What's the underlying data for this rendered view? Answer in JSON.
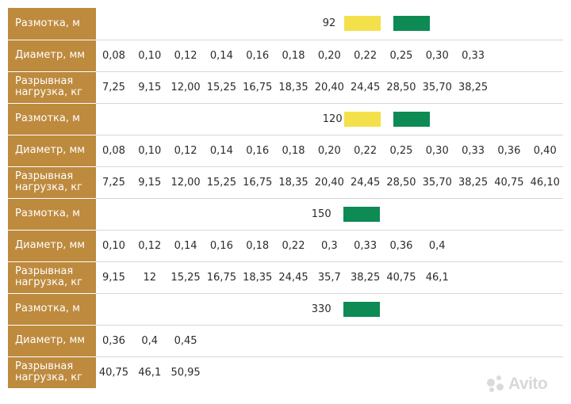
{
  "labels": {
    "spool": "Размотка, м",
    "diameter": "Диаметр, мм",
    "load": "Разрывная нагрузка, кг"
  },
  "colors": {
    "label_bg": "#bd8a3e",
    "yellow": "#f3e14b",
    "green": "#0e8a55"
  },
  "groups": [
    {
      "spool": "92",
      "swatches": [
        "yellow",
        "green"
      ],
      "diameters": [
        "0,08",
        "0,10",
        "0,12",
        "0,14",
        "0,16",
        "0,18",
        "0,20",
        "0,22",
        "0,25",
        "0,30",
        "0,33"
      ],
      "loads": [
        "7,25",
        "9,15",
        "12,00",
        "15,25",
        "16,75",
        "18,35",
        "20,40",
        "24,45",
        "28,50",
        "35,70",
        "38,25"
      ]
    },
    {
      "spool": "120",
      "swatches": [
        "yellow",
        "green"
      ],
      "diameters": [
        "0,08",
        "0,10",
        "0,12",
        "0,14",
        "0,16",
        "0,18",
        "0,20",
        "0,22",
        "0,25",
        "0,30",
        "0,33",
        "0,36",
        "0,40"
      ],
      "loads": [
        "7,25",
        "9,15",
        "12,00",
        "15,25",
        "16,75",
        "18,35",
        "20,40",
        "24,45",
        "28,50",
        "35,70",
        "38,25",
        "40,75",
        "46,10"
      ]
    },
    {
      "spool": "150",
      "swatches": [
        "green"
      ],
      "diameters": [
        "0,10",
        "0,12",
        "0,14",
        "0,16",
        "0,18",
        "0,22",
        "0,3",
        "0,33",
        "0,36",
        "0,4"
      ],
      "loads": [
        "9,15",
        "12",
        "15,25",
        "16,75",
        "18,35",
        "24,45",
        "35,7",
        "38,25",
        "40,75",
        "46,1"
      ]
    },
    {
      "spool": "330",
      "swatches": [
        "green"
      ],
      "diameters": [
        "0,36",
        "0,4",
        "0,45"
      ],
      "loads": [
        "40,75",
        "46,1",
        "50,95"
      ]
    }
  ],
  "watermark": "Avito"
}
